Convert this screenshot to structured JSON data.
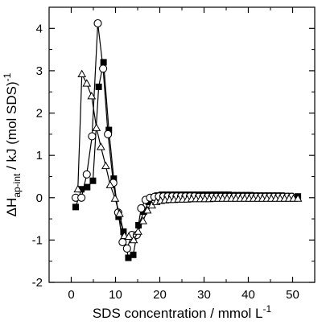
{
  "chart_data": {
    "type": "scatter",
    "title": "",
    "xlabel": {
      "main": "SDS concentration / mmol L",
      "sup": "-1"
    },
    "ylabel": {
      "pre": "ΔH",
      "sub": "ap-int",
      "mid": " / kJ (mol SDS)",
      "sup": "-1"
    },
    "xlim": [
      -5,
      55
    ],
    "ylim": [
      -2,
      4.5
    ],
    "xticks": [
      0,
      10,
      20,
      30,
      40,
      50
    ],
    "yticks": [
      -2,
      -1,
      0,
      1,
      2,
      3,
      4
    ],
    "grid": false,
    "legend": "none",
    "series": [
      {
        "marker": "square-filled",
        "points": [
          [
            1.0,
            -0.22
          ],
          [
            2.3,
            0.2
          ],
          [
            3.6,
            0.25
          ],
          [
            4.9,
            0.4
          ],
          [
            6.2,
            2.62
          ],
          [
            7.3,
            3.2
          ],
          [
            8.5,
            1.6
          ],
          [
            9.6,
            0.45
          ],
          [
            10.7,
            -0.45
          ],
          [
            11.8,
            -0.8
          ],
          [
            12.9,
            -1.42
          ],
          [
            14.0,
            -1.35
          ],
          [
            15.2,
            -0.65
          ],
          [
            16.4,
            -0.33
          ],
          [
            17.5,
            -0.1
          ],
          [
            18.5,
            0.0
          ],
          [
            19.5,
            0.05
          ],
          [
            20.5,
            0.07
          ],
          [
            21.5,
            0.07
          ],
          [
            22.5,
            0.07
          ],
          [
            23.5,
            0.07
          ],
          [
            24.5,
            0.07
          ],
          [
            25.5,
            0.07
          ],
          [
            26.5,
            0.07
          ],
          [
            27.5,
            0.07
          ],
          [
            28.5,
            0.07
          ],
          [
            29.5,
            0.07
          ],
          [
            30.5,
            0.07
          ],
          [
            31.5,
            0.07
          ],
          [
            32.5,
            0.07
          ],
          [
            33.5,
            0.07
          ],
          [
            34.5,
            0.07
          ],
          [
            35.5,
            0.07
          ],
          [
            36.5,
            0.06
          ],
          [
            37.5,
            0.06
          ],
          [
            38.5,
            0.06
          ],
          [
            39.5,
            0.06
          ],
          [
            40.5,
            0.06
          ],
          [
            41.5,
            0.05
          ],
          [
            42.5,
            0.05
          ],
          [
            43.5,
            0.05
          ],
          [
            44.5,
            0.05
          ],
          [
            45.5,
            0.05
          ],
          [
            46.5,
            0.05
          ],
          [
            47.5,
            0.05
          ],
          [
            48.5,
            0.04
          ],
          [
            49.5,
            0.04
          ],
          [
            51.2,
            0.03
          ]
        ]
      },
      {
        "marker": "circle-open",
        "points": [
          [
            1.0,
            0.0
          ],
          [
            2.3,
            0.0
          ],
          [
            3.5,
            0.55
          ],
          [
            4.7,
            1.45
          ],
          [
            6.0,
            4.12
          ],
          [
            7.2,
            3.05
          ],
          [
            8.3,
            1.5
          ],
          [
            9.5,
            0.35
          ],
          [
            10.6,
            -0.35
          ],
          [
            11.6,
            -1.05
          ],
          [
            12.6,
            -1.2
          ],
          [
            13.7,
            -0.88
          ],
          [
            14.8,
            -0.88
          ],
          [
            15.8,
            -0.25
          ],
          [
            16.8,
            -0.05
          ],
          [
            17.8,
            0.0
          ],
          [
            18.8,
            0.02
          ],
          [
            19.8,
            0.03
          ],
          [
            20.8,
            0.03
          ],
          [
            21.8,
            0.03
          ],
          [
            22.8,
            0.03
          ],
          [
            23.8,
            0.03
          ],
          [
            24.8,
            0.03
          ],
          [
            25.8,
            0.03
          ],
          [
            26.8,
            0.03
          ],
          [
            27.8,
            0.03
          ],
          [
            28.8,
            0.02
          ],
          [
            29.8,
            0.02
          ],
          [
            30.8,
            0.02
          ],
          [
            31.8,
            0.02
          ],
          [
            32.8,
            0.02
          ],
          [
            33.8,
            0.02
          ],
          [
            34.8,
            0.02
          ],
          [
            35.8,
            0.02
          ],
          [
            36.8,
            0.02
          ],
          [
            37.8,
            0.02
          ],
          [
            38.8,
            0.02
          ],
          [
            39.8,
            0.02
          ],
          [
            40.8,
            0.02
          ],
          [
            41.8,
            0.02
          ],
          [
            42.8,
            0.02
          ],
          [
            43.8,
            0.02
          ],
          [
            44.8,
            0.02
          ],
          [
            45.8,
            0.02
          ],
          [
            46.8,
            0.02
          ],
          [
            47.8,
            0.02
          ],
          [
            48.8,
            0.02
          ],
          [
            49.8,
            0.02
          ]
        ]
      },
      {
        "marker": "triangle-open",
        "points": [
          [
            1.5,
            0.2
          ],
          [
            2.4,
            2.92
          ],
          [
            3.5,
            2.7
          ],
          [
            4.6,
            2.4
          ],
          [
            5.7,
            1.65
          ],
          [
            6.7,
            1.2
          ],
          [
            7.8,
            0.75
          ],
          [
            8.8,
            0.3
          ],
          [
            9.9,
            -0.02
          ],
          [
            10.9,
            -0.38
          ],
          [
            12.0,
            -0.9
          ],
          [
            13.0,
            -0.92
          ],
          [
            14.1,
            -1.0
          ],
          [
            15.1,
            -0.8
          ],
          [
            16.2,
            -0.55
          ],
          [
            17.2,
            -0.3
          ],
          [
            18.2,
            -0.18
          ],
          [
            19.2,
            -0.1
          ],
          [
            20.2,
            -0.07
          ],
          [
            21.2,
            -0.06
          ],
          [
            22.2,
            -0.05
          ],
          [
            23.2,
            -0.05
          ],
          [
            24.2,
            -0.04
          ],
          [
            25.2,
            -0.04
          ],
          [
            26.2,
            -0.04
          ],
          [
            27.2,
            -0.03
          ],
          [
            28.2,
            -0.03
          ],
          [
            29.2,
            -0.03
          ],
          [
            30.2,
            -0.03
          ],
          [
            31.2,
            -0.03
          ],
          [
            32.2,
            -0.02
          ],
          [
            33.2,
            -0.02
          ],
          [
            34.2,
            -0.02
          ],
          [
            35.2,
            -0.02
          ],
          [
            36.2,
            -0.02
          ],
          [
            37.2,
            -0.02
          ],
          [
            38.2,
            -0.02
          ],
          [
            39.2,
            -0.02
          ],
          [
            40.2,
            -0.02
          ],
          [
            41.2,
            -0.02
          ],
          [
            42.2,
            -0.02
          ],
          [
            43.2,
            -0.02
          ],
          [
            44.2,
            -0.02
          ],
          [
            45.2,
            -0.02
          ],
          [
            46.2,
            -0.02
          ],
          [
            47.2,
            -0.02
          ],
          [
            48.2,
            -0.02
          ],
          [
            49.2,
            -0.02
          ],
          [
            50.2,
            -0.02
          ],
          [
            51.2,
            -0.02
          ]
        ]
      }
    ]
  }
}
